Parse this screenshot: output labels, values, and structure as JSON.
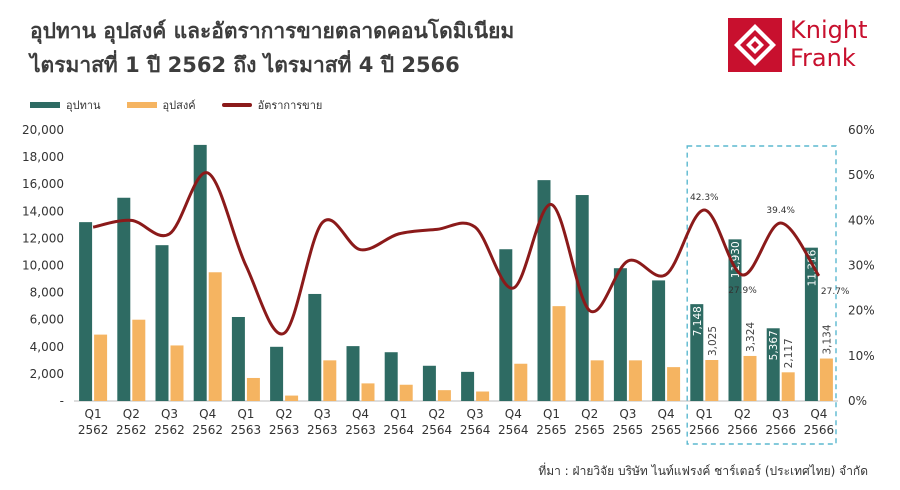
{
  "header": {
    "title_line1": "อุปทาน อุปสงค์ และอัตราการขายตลาดคอนโดมิเนียม",
    "title_line2": "ไตรมาสที่ 1 ปี 2562 ถึง ไตรมาสที่ 4 ปี 2566"
  },
  "logo": {
    "line1": "Knight",
    "line2": "Frank"
  },
  "legend": {
    "supply": "อุปทาน",
    "demand": "อุปสงค์",
    "rate": "อัตราการขาย"
  },
  "source": "ที่มา : ฝ่ายวิจัย บริษัท ไนท์แฟรงค์ ชาร์เตอร์ (ประเทศไทย) จำกัด",
  "colors": {
    "supply": "#2e6b63",
    "demand": "#f5b461",
    "rate": "#8b1a1a",
    "brand": "#c8102e",
    "highlight": "#5bb8cf"
  },
  "chart_data": {
    "type": "bar",
    "categories": [
      [
        "Q1",
        "2562"
      ],
      [
        "Q2",
        "2562"
      ],
      [
        "Q3",
        "2562"
      ],
      [
        "Q4",
        "2562"
      ],
      [
        "Q1",
        "2563"
      ],
      [
        "Q2",
        "2563"
      ],
      [
        "Q3",
        "2563"
      ],
      [
        "Q4",
        "2563"
      ],
      [
        "Q1",
        "2564"
      ],
      [
        "Q2",
        "2564"
      ],
      [
        "Q3",
        "2564"
      ],
      [
        "Q4",
        "2564"
      ],
      [
        "Q1",
        "2565"
      ],
      [
        "Q2",
        "2565"
      ],
      [
        "Q3",
        "2565"
      ],
      [
        "Q4",
        "2565"
      ],
      [
        "Q1",
        "2566"
      ],
      [
        "Q2",
        "2566"
      ],
      [
        "Q3",
        "2566"
      ],
      [
        "Q4",
        "2566"
      ]
    ],
    "series": [
      {
        "name": "อุปทาน",
        "type": "bar",
        "axis": "left",
        "values": [
          13200,
          15000,
          11500,
          18900,
          6200,
          4000,
          7900,
          4050,
          3600,
          2600,
          2150,
          11200,
          16300,
          15200,
          9800,
          8900,
          7148,
          11930,
          5367,
          11316
        ]
      },
      {
        "name": "อุปสงค์",
        "type": "bar",
        "axis": "left",
        "values": [
          4900,
          6000,
          4100,
          9500,
          1700,
          400,
          3000,
          1300,
          1200,
          800,
          700,
          2750,
          7000,
          3000,
          3000,
          2500,
          3025,
          3324,
          2117,
          3134
        ]
      },
      {
        "name": "อัตราการขาย",
        "type": "line",
        "axis": "right",
        "values": [
          38.5,
          40,
          37,
          50.5,
          30,
          15,
          39.5,
          33.5,
          37,
          38,
          38.5,
          25,
          43.5,
          20,
          31,
          28,
          42.3,
          27.9,
          39.4,
          27.7
        ]
      }
    ],
    "left_ticks": [
      "20,000",
      "18,000",
      "16,000",
      "14,000",
      "12,000",
      "10,000",
      "8,000",
      "6,000",
      "4,000",
      "2,000",
      "-"
    ],
    "right_ticks": [
      "60%",
      "50%",
      "40%",
      "30%",
      "20%",
      "10%",
      "0%"
    ],
    "ylim_left": [
      0,
      20000
    ],
    "ylim_right": [
      0,
      60
    ],
    "bar_labels": [
      {
        "index": 16,
        "supply": "7,148",
        "demand": "3,025"
      },
      {
        "index": 17,
        "supply": "11,930",
        "demand": "3,324"
      },
      {
        "index": 18,
        "supply": "5,367",
        "demand": "2,117"
      },
      {
        "index": 19,
        "supply": "11,316",
        "demand": "3,134"
      }
    ],
    "rate_labels": [
      {
        "index": 16,
        "text": "42.3%"
      },
      {
        "index": 17,
        "text": "27.9%"
      },
      {
        "index": 18,
        "text": "39.4%"
      },
      {
        "index": 19,
        "text": "27.7%"
      }
    ],
    "highlight_range": [
      16,
      19
    ],
    "grid": false,
    "legend_position": "top-left"
  }
}
